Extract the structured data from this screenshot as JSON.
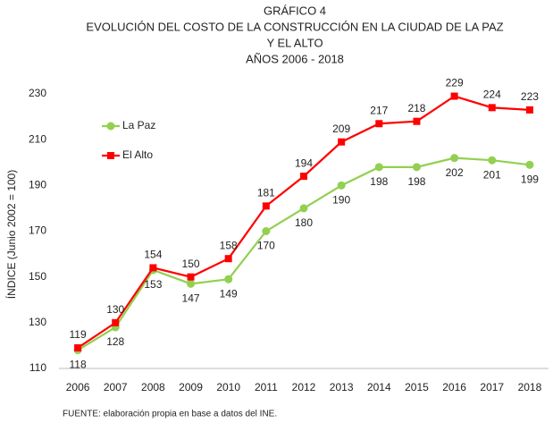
{
  "chart_data": {
    "type": "line",
    "title": "GRÁFICO 4",
    "subtitle": [
      "EVOLUCIÓN DEL COSTO DE LA CONSTRUCCIÓN EN LA CIUDAD DE LA PAZ",
      "Y EL ALTO",
      "AÑOS 2006 - 2018"
    ],
    "y_label": "ÍNDICE (Junio 2002 = 100)",
    "note": "FUENTE: elaboración propia en base a datos del INE.",
    "categories": [
      "2006",
      "2007",
      "2008",
      "2009",
      "2010",
      "2011",
      "2012",
      "2013",
      "2014",
      "2015",
      "2016",
      "2017",
      "2018"
    ],
    "series": [
      {
        "name": "La Paz",
        "color": "#92d050",
        "marker": "circle",
        "values": [
          118,
          128,
          153,
          147,
          149,
          170,
          180,
          190,
          198,
          198,
          202,
          201,
          199
        ]
      },
      {
        "name": "El Alto",
        "color": "#ff0000",
        "marker": "square",
        "values": [
          119,
          130,
          154,
          150,
          158,
          181,
          194,
          209,
          217,
          218,
          229,
          224,
          223
        ]
      }
    ],
    "ylim": [
      110,
      230
    ],
    "yticks": [
      110,
      130,
      150,
      170,
      190,
      210,
      230
    ],
    "grid": false,
    "legend": "upper left"
  }
}
